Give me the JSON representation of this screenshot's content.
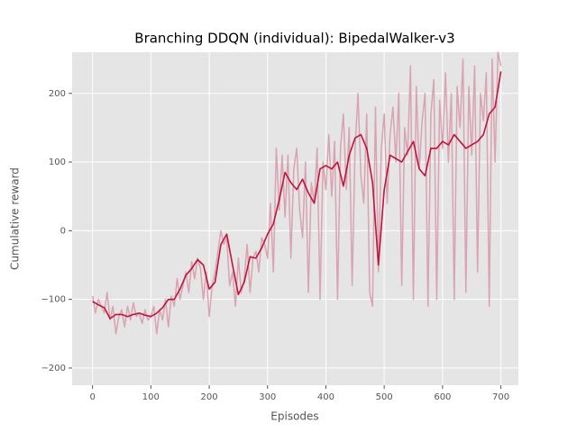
{
  "chart_data": {
    "type": "line",
    "title": "Branching DDQN (individual): BipedalWalker-v3",
    "xlabel": "Episodes",
    "ylabel": "Cumulative reward",
    "xlim": [
      -35,
      730
    ],
    "ylim": [
      -225,
      260
    ],
    "xticks": [
      0,
      100,
      200,
      300,
      400,
      500,
      600,
      700
    ],
    "yticks": [
      {
        "value": -200,
        "label": "−200"
      },
      {
        "value": -100,
        "label": "−100"
      },
      0,
      100,
      200
    ],
    "grid": true,
    "series": [
      {
        "color": "#d9a3b1",
        "x": [
          0,
          5,
          10,
          15,
          20,
          25,
          30,
          35,
          40,
          45,
          50,
          55,
          60,
          65,
          70,
          75,
          80,
          85,
          90,
          95,
          100,
          105,
          110,
          115,
          120,
          125,
          130,
          135,
          140,
          145,
          150,
          155,
          160,
          165,
          170,
          175,
          180,
          185,
          190,
          195,
          200,
          205,
          210,
          215,
          220,
          225,
          230,
          235,
          240,
          245,
          250,
          255,
          260,
          265,
          270,
          275,
          280,
          285,
          290,
          295,
          300,
          305,
          310,
          315,
          320,
          325,
          330,
          335,
          340,
          345,
          350,
          355,
          360,
          365,
          370,
          375,
          380,
          385,
          390,
          395,
          400,
          405,
          410,
          415,
          420,
          425,
          430,
          435,
          440,
          445,
          450,
          455,
          460,
          465,
          470,
          475,
          480,
          485,
          490,
          495,
          500,
          505,
          510,
          515,
          520,
          525,
          530,
          535,
          540,
          545,
          550,
          555,
          560,
          565,
          570,
          575,
          580,
          585,
          590,
          595,
          600,
          605,
          610,
          615,
          620,
          625,
          630,
          635,
          640,
          645,
          650,
          655,
          660,
          665,
          670,
          675,
          680,
          685,
          690,
          695,
          700
        ],
        "values": [
          -95,
          -120,
          -100,
          -110,
          -120,
          -90,
          -130,
          -110,
          -150,
          -125,
          -115,
          -140,
          -110,
          -130,
          -105,
          -125,
          -120,
          -135,
          -115,
          -130,
          -125,
          -110,
          -150,
          -115,
          -130,
          -100,
          -140,
          -95,
          -110,
          -70,
          -100,
          -80,
          -60,
          -90,
          -45,
          -70,
          -40,
          -55,
          -100,
          -60,
          -125,
          -80,
          -60,
          -30,
          0,
          -20,
          -10,
          -80,
          -60,
          -110,
          -40,
          -90,
          -70,
          -20,
          -90,
          -40,
          -30,
          -60,
          -10,
          -20,
          -40,
          40,
          -60,
          120,
          30,
          110,
          20,
          110,
          -40,
          90,
          120,
          30,
          -10,
          100,
          -90,
          70,
          40,
          120,
          -100,
          100,
          60,
          140,
          50,
          130,
          -100,
          120,
          170,
          60,
          150,
          -80,
          120,
          200,
          80,
          40,
          170,
          -90,
          -110,
          180,
          -60,
          120,
          170,
          40,
          140,
          180,
          100,
          200,
          -80,
          150,
          110,
          240,
          -100,
          210,
          90,
          160,
          200,
          -110,
          170,
          220,
          -100,
          190,
          120,
          230,
          100,
          200,
          -100,
          210,
          150,
          250,
          -90,
          210,
          110,
          240,
          -60,
          200,
          160,
          230,
          -110,
          250,
          100,
          260,
          240
        ]
      },
      {
        "color": "#c0143c",
        "x": [
          0,
          10,
          20,
          30,
          40,
          50,
          60,
          70,
          80,
          90,
          100,
          110,
          120,
          130,
          140,
          150,
          160,
          170,
          180,
          190,
          200,
          210,
          220,
          230,
          240,
          250,
          260,
          270,
          280,
          290,
          300,
          310,
          320,
          330,
          340,
          350,
          360,
          370,
          380,
          390,
          400,
          410,
          420,
          430,
          440,
          450,
          460,
          470,
          480,
          490,
          500,
          510,
          520,
          530,
          540,
          550,
          560,
          570,
          580,
          590,
          600,
          610,
          620,
          630,
          640,
          650,
          660,
          670,
          680,
          690,
          700
        ],
        "values": [
          -103,
          -108,
          -112,
          -128,
          -122,
          -122,
          -125,
          -122,
          -120,
          -123,
          -125,
          -120,
          -112,
          -100,
          -100,
          -85,
          -65,
          -55,
          -42,
          -50,
          -85,
          -75,
          -20,
          -5,
          -50,
          -93,
          -75,
          -38,
          -40,
          -25,
          -5,
          10,
          45,
          85,
          70,
          60,
          75,
          55,
          40,
          90,
          95,
          90,
          100,
          65,
          110,
          135,
          140,
          120,
          70,
          -50,
          60,
          110,
          105,
          100,
          115,
          130,
          90,
          80,
          120,
          120,
          130,
          125,
          140,
          130,
          120,
          125,
          130,
          140,
          170,
          180,
          232
        ]
      }
    ]
  }
}
